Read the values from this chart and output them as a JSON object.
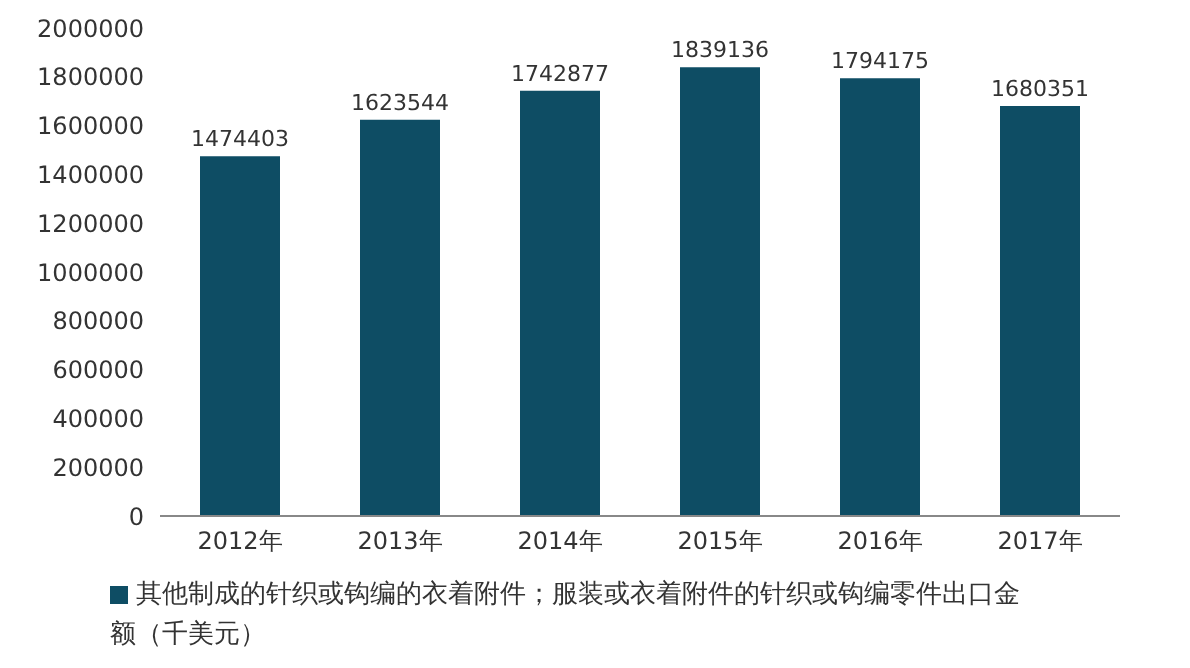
{
  "chart_data": {
    "type": "bar",
    "categories": [
      "2012年",
      "2013年",
      "2014年",
      "2015年",
      "2016年",
      "2017年"
    ],
    "series": [
      {
        "name": "其他制成的针织或钩编的衣着附件；服装或衣着附件的针织或钩编零件出口金额（千美元）",
        "color": "#0e4d64",
        "values": [
          1474403,
          1623544,
          1742877,
          1839136,
          1794175,
          1680351
        ]
      }
    ],
    "ylim": [
      0,
      2000000
    ],
    "yticks": [
      0,
      200000,
      400000,
      600000,
      800000,
      1000000,
      1200000,
      1400000,
      1600000,
      1800000,
      2000000
    ],
    "data_labels": true,
    "grid": false,
    "legend": "bottom"
  }
}
